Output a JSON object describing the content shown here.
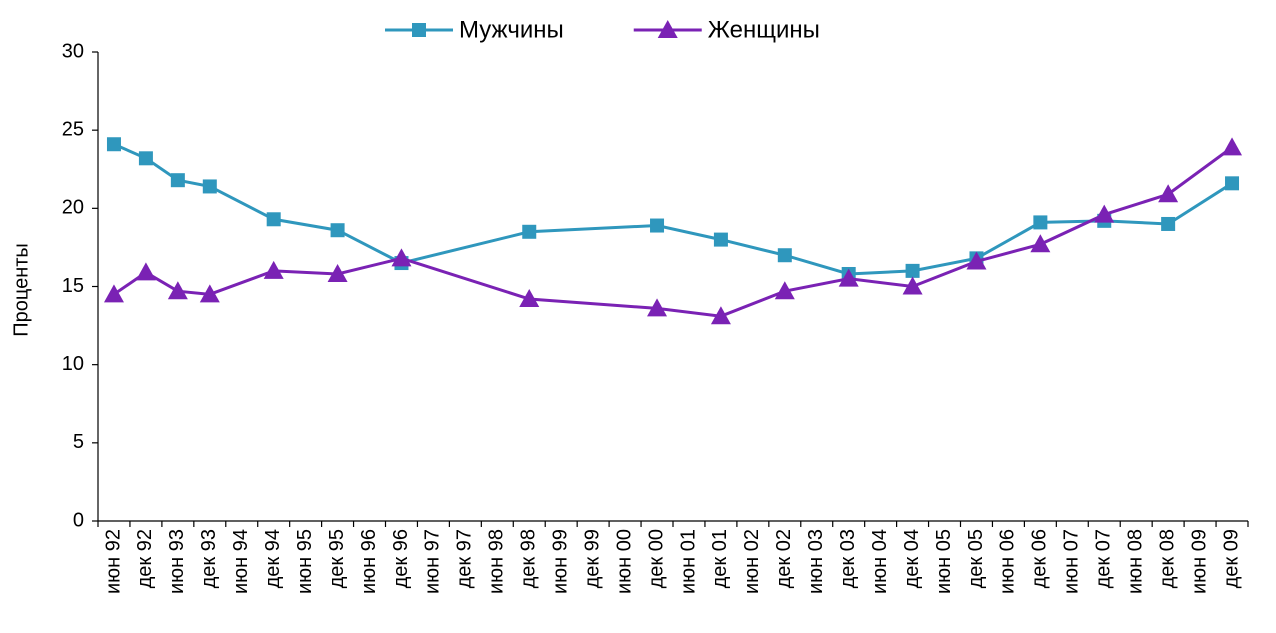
{
  "chart_data": {
    "type": "line",
    "y_label": "Проценты",
    "categories": [
      "июн 92",
      "дек 92",
      "июн 93",
      "дек 93",
      "июн 94",
      "дек 94",
      "июн 95",
      "дек 95",
      "июн 96",
      "дек 96",
      "июн 97",
      "дек 97",
      "июн 98",
      "дек 98",
      "июн 99",
      "дек 99",
      "июн 00",
      "дек 00",
      "июн 01",
      "дек 01",
      "июн 02",
      "дек 02",
      "июн 03",
      "дек 03",
      "июн 04",
      "дек 04",
      "июн 05",
      "дек 05",
      "июн 06",
      "дек 06",
      "июн 07",
      "дек 07",
      "июн 08",
      "дек 08",
      "июн 09",
      "дек 09"
    ],
    "series": [
      {
        "name": "Мужчины",
        "color": "#2f97bd",
        "marker": "square",
        "values": [
          24.1,
          23.2,
          21.8,
          21.4,
          null,
          19.3,
          null,
          18.6,
          null,
          16.5,
          null,
          null,
          null,
          18.5,
          null,
          null,
          null,
          18.9,
          null,
          18.0,
          null,
          17.0,
          null,
          15.8,
          null,
          16.0,
          null,
          16.8,
          null,
          19.1,
          null,
          19.2,
          null,
          19.0,
          null,
          21.6
        ]
      },
      {
        "name": "Женщины",
        "color": "#7a22b4",
        "marker": "triangle",
        "values": [
          14.5,
          15.9,
          14.7,
          14.5,
          null,
          16.0,
          null,
          15.8,
          null,
          16.8,
          null,
          null,
          null,
          14.2,
          null,
          null,
          null,
          13.6,
          null,
          13.1,
          null,
          14.7,
          null,
          15.5,
          null,
          15.0,
          null,
          16.6,
          null,
          17.7,
          null,
          19.6,
          null,
          20.9,
          null,
          23.9
        ]
      }
    ],
    "span_gaps": true,
    "ylim": [
      0,
      30
    ],
    "yticks": [
      0,
      5,
      10,
      15,
      20,
      25,
      30
    ],
    "legend": "top"
  }
}
